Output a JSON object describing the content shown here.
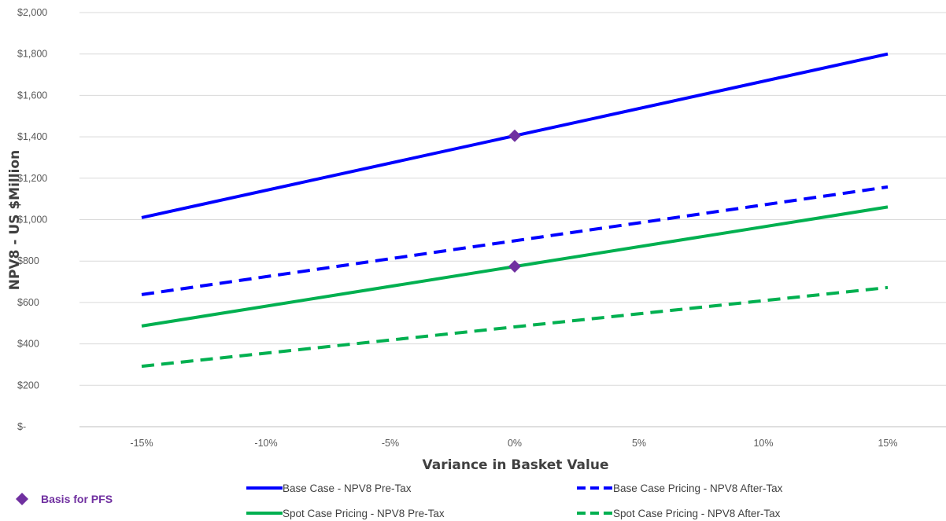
{
  "chart_data": {
    "type": "line",
    "xlabel": "Variance in Basket Value",
    "ylabel": "NPV8 - US $Million",
    "x_ticks": [
      "-15%",
      "-10%",
      "-5%",
      "0%",
      "5%",
      "10%",
      "15%"
    ],
    "y_ticks": [
      "$-",
      "$200",
      "$400",
      "$600",
      "$800",
      "$1,000",
      "$1,200",
      "$1,400",
      "$1,600",
      "$1,800",
      "$2,000"
    ],
    "xlim": [
      -0.175,
      0.175
    ],
    "ylim": [
      0,
      2000
    ],
    "grid": "horizontal",
    "legend_position": "bottom",
    "x": [
      -0.15,
      0.15
    ],
    "series": [
      {
        "name": "Base Case - NPV8 Pre-Tax",
        "values": [
          1010,
          1800
        ],
        "color": "#0000FF",
        "dash": "solid"
      },
      {
        "name": "Base Case Pricing - NPV8 After-Tax",
        "values": [
          638,
          1158
        ],
        "color": "#0000FF",
        "dash": "dashed"
      },
      {
        "name": "Spot Case Pricing - NPV8 Pre-Tax",
        "values": [
          486,
          1061
        ],
        "color": "#00B050",
        "dash": "solid"
      },
      {
        "name": "Spot Case Pricing - NPV8 After-Tax",
        "values": [
          292,
          672
        ],
        "color": "#00B050",
        "dash": "dashed"
      }
    ],
    "markers": {
      "name": "Basis for PFS",
      "color": "#7030A0",
      "shape": "diamond",
      "points": [
        {
          "x": 0,
          "y": 1405
        },
        {
          "x": 0,
          "y": 774
        }
      ]
    }
  }
}
